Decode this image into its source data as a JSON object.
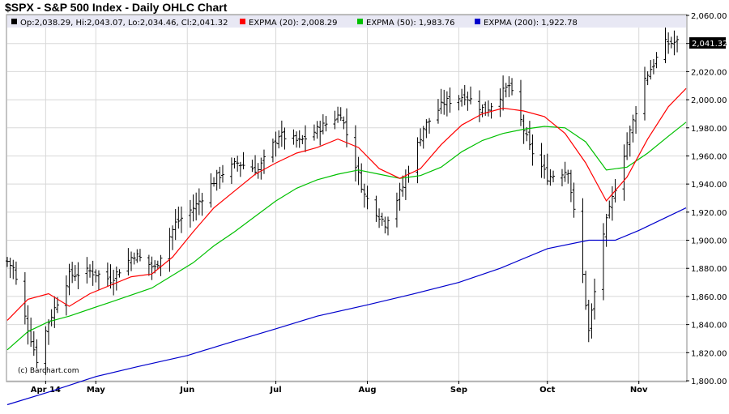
{
  "title": "$SPX - S&P 500 Index - Daily OHLC Chart",
  "copyright": "(c) Barchart.com",
  "legend": {
    "ohlc": "Op:2,038.29, Hi:2,043.07, Lo:2,034.46, Cl:2,041.32",
    "ema20": "EXPMA (20): 2,008.29",
    "ema50": "EXPMA (50): 1,983.76",
    "ema200": "EXPMA (200): 1,922.78"
  },
  "last_price_label": "2,041.32",
  "colors": {
    "ema20": "#ff0000",
    "ema50": "#00c000",
    "ema200": "#0000cc",
    "bars": "#000000",
    "grid": "#d8d8d8",
    "legend_bg": "#e8e8f4",
    "last_label_bg": "#000000"
  },
  "chart_data": {
    "type": "line",
    "yticks": [
      "1,800.00",
      "1,820.00",
      "1,840.00",
      "1,860.00",
      "1,880.00",
      "1,900.00",
      "1,920.00",
      "1,940.00",
      "1,960.00",
      "1,980.00",
      "2,000.00",
      "2,020.00",
      "2,040.00",
      "2,060.00"
    ],
    "ylim": [
      1800,
      2060
    ],
    "xlim": [
      "2014-04-01",
      "2014-11-17"
    ],
    "xticks": [
      {
        "label": "Apr 14",
        "date": "2014-04-14"
      },
      {
        "label": "May",
        "date": "2014-05-01"
      },
      {
        "label": "Jun",
        "date": "2014-06-01"
      },
      {
        "label": "Jul",
        "date": "2014-07-01"
      },
      {
        "label": "Aug",
        "date": "2014-08-01"
      },
      {
        "label": "Sep",
        "date": "2014-09-01"
      },
      {
        "label": "Oct",
        "date": "2014-10-01"
      },
      {
        "label": "Nov",
        "date": "2014-11-01"
      }
    ],
    "grid": true,
    "legend_position": "top",
    "series_close": {
      "name": "OHLC",
      "dates": [
        "2014-04-01",
        "2014-04-03",
        "2014-04-07",
        "2014-04-11",
        "2014-04-15",
        "2014-04-22",
        "2014-04-29",
        "2014-05-06",
        "2014-05-14",
        "2014-05-21",
        "2014-05-28",
        "2014-06-04",
        "2014-06-11",
        "2014-06-18",
        "2014-06-25",
        "2014-07-02",
        "2014-07-09",
        "2014-07-16",
        "2014-07-23",
        "2014-07-31",
        "2014-08-07",
        "2014-08-13",
        "2014-08-20",
        "2014-08-27",
        "2014-09-03",
        "2014-09-10",
        "2014-09-18",
        "2014-09-25",
        "2014-10-01",
        "2014-10-08",
        "2014-10-13",
        "2014-10-15",
        "2014-10-20",
        "2014-10-27",
        "2014-11-03",
        "2014-11-10",
        "2014-11-14"
      ],
      "values": [
        1885,
        1880,
        1845,
        1815,
        1842,
        1875,
        1878,
        1872,
        1890,
        1880,
        1912,
        1925,
        1945,
        1955,
        1950,
        1975,
        1970,
        1980,
        1990,
        1932,
        1912,
        1938,
        1980,
        1998,
        2003,
        1992,
        2010,
        1966,
        1945,
        1950,
        1875,
        1835,
        1905,
        1962,
        2015,
        2040,
        2041
      ]
    },
    "ema20": {
      "name": "EXPMA (20)",
      "dates": [
        "2014-04-01",
        "2014-04-08",
        "2014-04-15",
        "2014-04-22",
        "2014-04-29",
        "2014-05-06",
        "2014-05-13",
        "2014-05-20",
        "2014-05-27",
        "2014-06-03",
        "2014-06-10",
        "2014-06-17",
        "2014-06-24",
        "2014-07-01",
        "2014-07-08",
        "2014-07-15",
        "2014-07-22",
        "2014-07-29",
        "2014-08-05",
        "2014-08-12",
        "2014-08-19",
        "2014-08-26",
        "2014-09-02",
        "2014-09-09",
        "2014-09-16",
        "2014-09-23",
        "2014-09-30",
        "2014-10-07",
        "2014-10-14",
        "2014-10-21",
        "2014-10-28",
        "2014-11-04",
        "2014-11-11",
        "2014-11-17"
      ],
      "values": [
        1843,
        1858,
        1862,
        1853,
        1862,
        1868,
        1874,
        1876,
        1888,
        1906,
        1923,
        1935,
        1947,
        1955,
        1962,
        1966,
        1972,
        1966,
        1951,
        1944,
        1951,
        1968,
        1982,
        1990,
        1994,
        1992,
        1988,
        1976,
        1955,
        1928,
        1945,
        1972,
        1995,
        2008
      ]
    },
    "ema50": {
      "name": "EXPMA (50)",
      "dates": [
        "2014-04-01",
        "2014-04-08",
        "2014-04-15",
        "2014-04-22",
        "2014-04-29",
        "2014-05-06",
        "2014-05-13",
        "2014-05-20",
        "2014-05-27",
        "2014-06-03",
        "2014-06-10",
        "2014-06-17",
        "2014-06-24",
        "2014-07-01",
        "2014-07-08",
        "2014-07-15",
        "2014-07-22",
        "2014-07-29",
        "2014-08-05",
        "2014-08-12",
        "2014-08-19",
        "2014-08-26",
        "2014-09-02",
        "2014-09-09",
        "2014-09-16",
        "2014-09-23",
        "2014-09-30",
        "2014-10-07",
        "2014-10-14",
        "2014-10-21",
        "2014-10-28",
        "2014-11-04",
        "2014-11-11",
        "2014-11-17"
      ],
      "values": [
        1822,
        1835,
        1842,
        1846,
        1851,
        1856,
        1861,
        1866,
        1875,
        1884,
        1896,
        1906,
        1917,
        1928,
        1937,
        1943,
        1947,
        1950,
        1947,
        1944,
        1946,
        1952,
        1963,
        1971,
        1976,
        1979,
        1981,
        1980,
        1970,
        1950,
        1952,
        1962,
        1974,
        1984
      ]
    },
    "ema200": {
      "name": "EXPMA (200)",
      "dates": [
        "2014-04-01",
        "2014-04-15",
        "2014-05-01",
        "2014-05-15",
        "2014-06-01",
        "2014-06-15",
        "2014-07-01",
        "2014-07-15",
        "2014-08-01",
        "2014-08-15",
        "2014-09-01",
        "2014-09-15",
        "2014-10-01",
        "2014-10-15",
        "2014-10-24",
        "2014-11-01",
        "2014-11-17"
      ],
      "values": [
        1783,
        1792,
        1803,
        1810,
        1818,
        1827,
        1837,
        1846,
        1854,
        1861,
        1870,
        1880,
        1894,
        1900,
        1900,
        1907,
        1923
      ]
    }
  }
}
